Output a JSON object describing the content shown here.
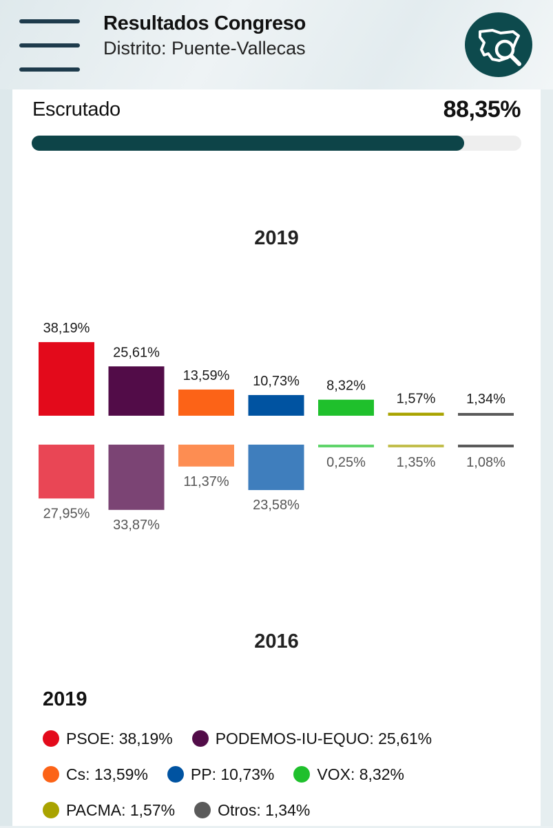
{
  "header": {
    "title": "Resultados Congreso",
    "subtitle": "Distrito: Puente-Vallecas",
    "menu_icon": "hamburger-menu-icon",
    "search_icon": "map-search-icon",
    "accent": "#0d4a4d"
  },
  "scrutiny": {
    "label": "Escrutado",
    "value_text": "88,35%",
    "value": 88.35
  },
  "years": {
    "current": "2019",
    "previous": "2016"
  },
  "chart_data": {
    "type": "bar",
    "categories": [
      "PSOE",
      "PODEMOS-IU-EQUO",
      "Cs",
      "PP",
      "VOX",
      "PACMA",
      "Otros"
    ],
    "series": [
      {
        "name": "2019",
        "values": [
          38.19,
          25.61,
          13.59,
          10.73,
          8.32,
          1.57,
          1.34
        ],
        "labels": [
          "38,19%",
          "25,61%",
          "13,59%",
          "10,73%",
          "8,32%",
          "1,57%",
          "1,34%"
        ]
      },
      {
        "name": "2016",
        "values": [
          27.95,
          33.87,
          11.37,
          23.58,
          0.25,
          1.35,
          1.08
        ],
        "labels": [
          "27,95%",
          "33,87%",
          "11,37%",
          "23,58%",
          "0,25%",
          "1,35%",
          "1,08%"
        ]
      }
    ],
    "colors_2019": [
      "#e30a1b",
      "#520c48",
      "#fc6317",
      "#0053a1",
      "#1fc02c",
      "#a9a300",
      "#5a5a5a"
    ],
    "colors_2016": [
      "#e94655",
      "#7b4474",
      "#fd8d52",
      "#3f7ebd",
      "#5fd46a",
      "#c2be4c",
      "#5a5a5a"
    ],
    "legend_placement": "bottom"
  },
  "legend": {
    "title": "2019",
    "rows": [
      [
        {
          "label": "PSOE: 38,19%",
          "color": "#e30a1b"
        },
        {
          "label": "PODEMOS-IU-EQUO: 25,61%",
          "color": "#520c48"
        }
      ],
      [
        {
          "label": "Cs: 13,59%",
          "color": "#fc6317"
        },
        {
          "label": "PP: 10,73%",
          "color": "#0053a1"
        },
        {
          "label": "VOX: 8,32%",
          "color": "#1fc02c"
        }
      ],
      [
        {
          "label": "PACMA: 1,57%",
          "color": "#a9a300"
        },
        {
          "label": "Otros: 1,34%",
          "color": "#5a5a5a"
        }
      ]
    ]
  }
}
